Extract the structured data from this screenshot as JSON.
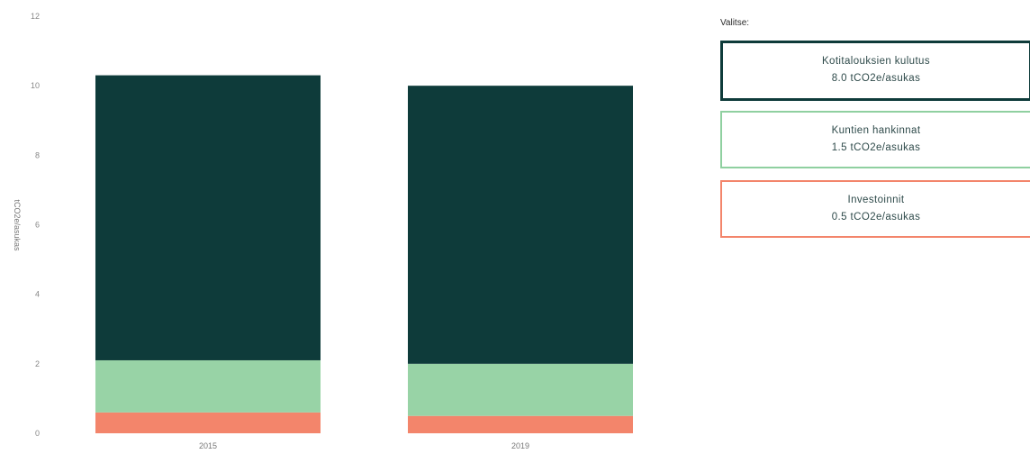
{
  "chart_data": {
    "type": "bar",
    "stacked": true,
    "categories": [
      "2015",
      "2019"
    ],
    "ylabel": "tCO2e/asukas",
    "ylim": [
      0,
      12
    ],
    "yticks": [
      0,
      2,
      4,
      6,
      8,
      10,
      12
    ],
    "grid": false,
    "series": [
      {
        "name": "Investoinnit",
        "color": "#f3856b",
        "values": [
          0.6,
          0.5
        ]
      },
      {
        "name": "Kuntien hankinnat",
        "color": "#98d3a6",
        "values": [
          1.5,
          1.5
        ]
      },
      {
        "name": "Kotitalouksien kulutus",
        "color": "#0e3b3a",
        "values": [
          8.2,
          8.0
        ]
      }
    ]
  },
  "panel": {
    "title": "Valitse:",
    "buttons": [
      {
        "label": "Kotitalouksien kulutus",
        "value": "8.0 tCO2e/asukas",
        "color": "#0e3b3a"
      },
      {
        "label": "Kuntien hankinnat",
        "value": "1.5 tCO2e/asukas",
        "color": "#8fd0a0"
      },
      {
        "label": "Investoinnit",
        "value": "0.5 tCO2e/asukas",
        "color": "#f3856b"
      }
    ]
  }
}
